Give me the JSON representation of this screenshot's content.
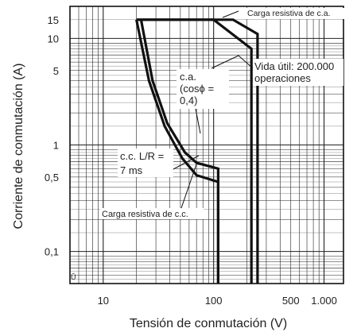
{
  "chart_data": {
    "type": "line",
    "xlabel": "Tensión de conmutación (V)",
    "ylabel": "Corriente de conmutación (A)",
    "x_scale": "log",
    "y_scale": "log",
    "xlim": [
      5,
      1500
    ],
    "ylim": [
      0.05,
      20
    ],
    "x_ticks": [
      {
        "value": 10,
        "label": "10"
      },
      {
        "value": 100,
        "label": "100"
      },
      {
        "value": 500,
        "label": "500"
      },
      {
        "value": 1000,
        "label": "1.000"
      }
    ],
    "y_ticks": [
      {
        "value": 15,
        "label": "15"
      },
      {
        "value": 10,
        "label": "10"
      },
      {
        "value": 5,
        "label": "5"
      },
      {
        "value": 1,
        "label": "1"
      },
      {
        "value": 0.5,
        "label": "0,5"
      },
      {
        "value": 0.1,
        "label": "0,1"
      }
    ],
    "grid": true,
    "series": [
      {
        "name": "Carga resistiva de c.a.",
        "points": [
          [
            20,
            15
          ],
          [
            150,
            15
          ],
          [
            250,
            11
          ],
          [
            250,
            0.05
          ]
        ]
      },
      {
        "name": "c.a. (cosϕ = 0,4)",
        "points": [
          [
            20,
            15
          ],
          [
            100,
            15
          ],
          [
            220,
            8
          ],
          [
            220,
            0.05
          ]
        ]
      },
      {
        "name": "Carga resistiva de c.c.",
        "points": [
          [
            22,
            15
          ],
          [
            28,
            4
          ],
          [
            38,
            1.6
          ],
          [
            55,
            0.85
          ],
          [
            70,
            0.68
          ],
          [
            110,
            0.6
          ],
          [
            110,
            0.05
          ]
        ]
      },
      {
        "name": "c.c. L/R = 7 ms",
        "points": [
          [
            20,
            15
          ],
          [
            26,
            4
          ],
          [
            36,
            1.5
          ],
          [
            52,
            0.75
          ],
          [
            70,
            0.52
          ],
          [
            110,
            0.45
          ],
          [
            110,
            0.05
          ]
        ]
      }
    ],
    "annotations": [
      {
        "id": "ac-resistive",
        "text": "Carga resistiva de c.a."
      },
      {
        "id": "life",
        "lines": [
          "Vida útil: 200.000",
          "operaciones"
        ]
      },
      {
        "id": "ac-inductive",
        "lines": [
          "c.a.",
          "(cosϕ =",
          "0,4)"
        ]
      },
      {
        "id": "dc-inductive",
        "lines": [
          "c.c. L/R =",
          "7 ms"
        ]
      },
      {
        "id": "dc-resistive",
        "text": "Carga resistiva de c.c."
      }
    ],
    "corner_mark": "Ŭ"
  }
}
